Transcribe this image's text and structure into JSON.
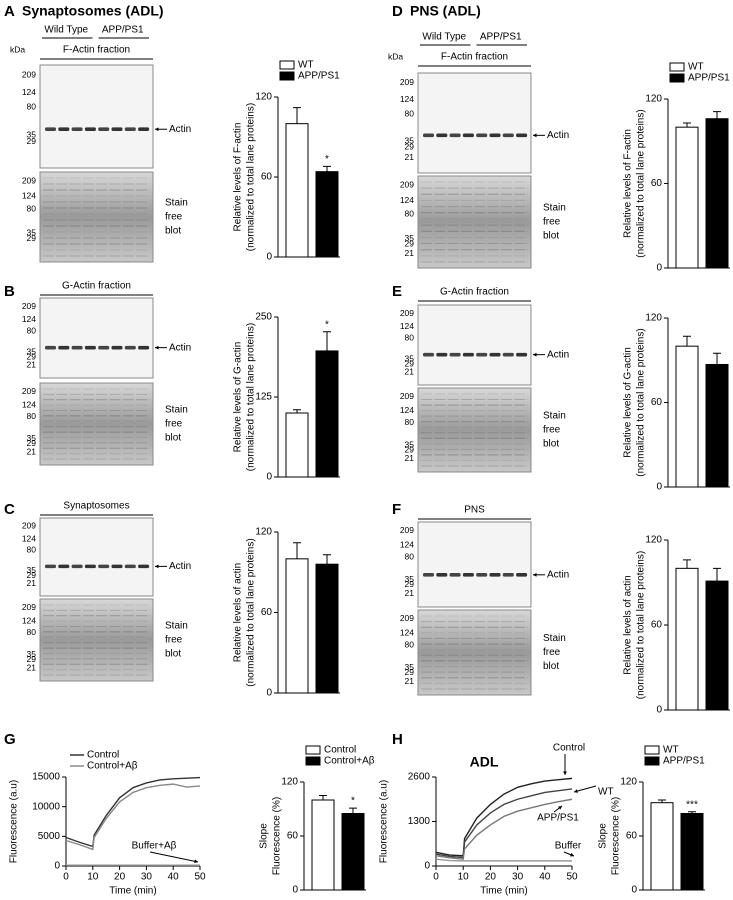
{
  "figure": {
    "panels": [
      {
        "letter": "A",
        "title": "Synaptosomes (ADL)"
      },
      {
        "letter": "B"
      },
      {
        "letter": "C"
      },
      {
        "letter": "D",
        "title": "PNS (ADL)"
      },
      {
        "letter": "E"
      },
      {
        "letter": "F"
      },
      {
        "letter": "G"
      },
      {
        "letter": "H"
      }
    ]
  },
  "blots": [
    {
      "group_labels": [
        "Wild Type",
        "APP/PS1"
      ],
      "unit": "kDa",
      "fraction": "F-Actin fraction",
      "ladder": [
        209,
        124,
        80,
        35,
        29
      ],
      "band_label": "Actin",
      "stain_ladder": [
        209,
        124,
        80,
        35,
        29
      ],
      "stain_label": [
        "Stain",
        "free",
        "blot"
      ]
    },
    {
      "fraction": "G-Actin fraction",
      "ladder": [
        209,
        124,
        80,
        35,
        29,
        21
      ],
      "band_label": "Actin",
      "stain_ladder": [
        209,
        124,
        80,
        35,
        29,
        21
      ],
      "stain_label": [
        "Stain",
        "free",
        "blot"
      ]
    },
    {
      "fraction": "Synaptosomes",
      "ladder": [
        209,
        124,
        80,
        35,
        29,
        21
      ],
      "band_label": "Actin",
      "stain_ladder": [
        209,
        124,
        80,
        35,
        29,
        21
      ],
      "stain_label": [
        "Stain",
        "free",
        "blot"
      ]
    },
    {
      "group_labels": [
        "Wild Type",
        "APP/PS1"
      ],
      "unit": "kDa",
      "fraction": "F-Actin fraction",
      "ladder": [
        209,
        124,
        80,
        35,
        29,
        21
      ],
      "band_label": "Actin",
      "stain_ladder": [
        209,
        124,
        80,
        35,
        29,
        21
      ],
      "stain_label": [
        "Stain",
        "free",
        "blot"
      ]
    },
    {
      "fraction": "G-Actin fraction",
      "ladder": [
        209,
        124,
        80,
        35,
        29,
        21
      ],
      "band_label": "Actin",
      "stain_ladder": [
        209,
        124,
        80,
        35,
        29,
        21
      ],
      "stain_label": [
        "Stain",
        "free",
        "blot"
      ]
    },
    {
      "fraction": "PNS",
      "ladder": [
        209,
        124,
        80,
        35,
        29,
        21
      ],
      "band_label": "Actin",
      "stain_ladder": [
        209,
        124,
        80,
        35,
        29,
        21
      ],
      "stain_label": [
        "Stain",
        "free",
        "blot"
      ]
    }
  ],
  "chart_data": [
    {
      "type": "bar",
      "ylabel": [
        "Relative levels of F-actin",
        "(normalized to total lane proteins)"
      ],
      "categories": [
        "WT",
        "APP/PS1"
      ],
      "values": [
        100,
        64
      ],
      "errors": [
        12,
        4
      ],
      "colors": [
        "#ffffff",
        "#000000"
      ],
      "significance": [
        null,
        "*"
      ],
      "ylim": [
        0,
        120
      ],
      "yticks": [
        0,
        60,
        120
      ],
      "legend": true
    },
    {
      "type": "bar",
      "ylabel": [
        "Relative levels of G-actin",
        "(normalized to total lane proteins)"
      ],
      "categories": [
        "WT",
        "APP/PS1"
      ],
      "values": [
        100,
        197
      ],
      "errors": [
        5,
        30
      ],
      "colors": [
        "#ffffff",
        "#000000"
      ],
      "significance": [
        null,
        "*"
      ],
      "ylim": [
        0,
        250
      ],
      "yticks": [
        0,
        125,
        250
      ],
      "legend": false
    },
    {
      "type": "bar",
      "ylabel": [
        "Relative levels of actin",
        "(normalized to total lane proteins)"
      ],
      "categories": [
        "WT",
        "APP/PS1"
      ],
      "values": [
        100,
        96
      ],
      "errors": [
        12,
        7
      ],
      "colors": [
        "#ffffff",
        "#000000"
      ],
      "significance": [
        null,
        null
      ],
      "ylim": [
        0,
        120
      ],
      "yticks": [
        0,
        60,
        120
      ],
      "legend": false
    },
    {
      "type": "bar",
      "ylabel": [
        "Relative levels of F-actin",
        "(normalized to total lane proteins)"
      ],
      "categories": [
        "WT",
        "APP/PS1"
      ],
      "values": [
        100,
        106
      ],
      "errors": [
        3,
        5
      ],
      "colors": [
        "#ffffff",
        "#000000"
      ],
      "significance": [
        null,
        null
      ],
      "ylim": [
        0,
        120
      ],
      "yticks": [
        0,
        60,
        120
      ],
      "legend": true
    },
    {
      "type": "bar",
      "ylabel": [
        "Relative levels of G-actin",
        "(normalized to total lane proteins)"
      ],
      "categories": [
        "WT",
        "APP/PS1"
      ],
      "values": [
        100,
        87
      ],
      "errors": [
        7,
        8
      ],
      "colors": [
        "#ffffff",
        "#000000"
      ],
      "significance": [
        null,
        null
      ],
      "ylim": [
        0,
        120
      ],
      "yticks": [
        0,
        60,
        120
      ],
      "legend": false
    },
    {
      "type": "bar",
      "ylabel": [
        "Relative levels of actin",
        "(normalized to total lane proteins)"
      ],
      "categories": [
        "WT",
        "APP/PS1"
      ],
      "values": [
        100,
        91
      ],
      "errors": [
        6,
        9
      ],
      "colors": [
        "#ffffff",
        "#000000"
      ],
      "significance": [
        null,
        null
      ],
      "ylim": [
        0,
        120
      ],
      "yticks": [
        0,
        60,
        120
      ],
      "legend": false
    },
    {
      "type": "line",
      "xlabel": "Time (min)",
      "ylabel": "Fluorescence (a.u)",
      "x": [
        0,
        5,
        10,
        10.5,
        15,
        20,
        25,
        30,
        35,
        40,
        45,
        50
      ],
      "series": [
        {
          "name": "Control",
          "color": "#333333",
          "label": "legend",
          "values": [
            4800,
            4000,
            3300,
            5200,
            8500,
            11500,
            13200,
            14000,
            14500,
            14700,
            14800,
            14900
          ]
        },
        {
          "name": "Control+Aβ",
          "color": "#888888",
          "label": "legend",
          "values": [
            4300,
            3600,
            2800,
            4800,
            8000,
            10800,
            12400,
            13200,
            13600,
            13800,
            13300,
            13500
          ]
        },
        {
          "name": "Buffer+Aβ",
          "color": "#aaaaaa",
          "label": "inline",
          "values": [
            150,
            150,
            150,
            150,
            150,
            150,
            150,
            150,
            150,
            150,
            150,
            150
          ]
        }
      ],
      "xlim": [
        0,
        50
      ],
      "xticks": [
        0,
        10,
        20,
        30,
        40,
        50
      ],
      "ylim": [
        0,
        15000
      ],
      "yticks": [
        0,
        5000,
        10000,
        15000
      ]
    },
    {
      "type": "bar",
      "ylabel": [
        "Slope",
        "Fluorescence (%)"
      ],
      "categories": [
        "Control",
        "Control+Aβ"
      ],
      "values": [
        100,
        85
      ],
      "errors": [
        5,
        6
      ],
      "colors": [
        "#ffffff",
        "#000000"
      ],
      "significance": [
        null,
        "*"
      ],
      "ylim": [
        0,
        120
      ],
      "yticks": [
        0,
        60,
        120
      ],
      "legend": true
    },
    {
      "type": "line",
      "title": "ADL",
      "xlabel": "Time (min)",
      "ylabel": "Fluorescence (a.u)",
      "x": [
        0,
        5,
        10,
        10.5,
        15,
        20,
        25,
        30,
        35,
        40,
        45,
        50
      ],
      "series": [
        {
          "name": "Control",
          "color": "#222222",
          "label": "inline",
          "values": [
            400,
            320,
            300,
            800,
            1400,
            1800,
            2100,
            2300,
            2400,
            2480,
            2520,
            2560
          ]
        },
        {
          "name": "WT",
          "color": "#444444",
          "label": "inline",
          "values": [
            350,
            280,
            250,
            700,
            1200,
            1550,
            1800,
            1950,
            2050,
            2150,
            2200,
            2250
          ]
        },
        {
          "name": "APP/PS1",
          "color": "#777777",
          "label": "inline",
          "values": [
            300,
            240,
            200,
            500,
            900,
            1200,
            1450,
            1600,
            1700,
            1800,
            1880,
            1950
          ]
        },
        {
          "name": "Buffer",
          "color": "#999999",
          "label": "inline",
          "values": [
            200,
            160,
            150,
            150,
            150,
            150,
            150,
            150,
            150,
            150,
            150,
            150
          ]
        }
      ],
      "xlim": [
        0,
        50
      ],
      "xticks": [
        0,
        10,
        20,
        30,
        40,
        50
      ],
      "ylim": [
        0,
        2600
      ],
      "yticks": [
        0,
        1300,
        2600
      ]
    },
    {
      "type": "bar",
      "ylabel": [
        "Slope",
        "Fluorescence (%)"
      ],
      "categories": [
        "WT",
        "APP/PS1"
      ],
      "values": [
        97,
        85
      ],
      "errors": [
        3,
        2
      ],
      "colors": [
        "#ffffff",
        "#000000"
      ],
      "significance": [
        null,
        "***"
      ],
      "ylim": [
        0,
        120
      ],
      "yticks": [
        0,
        60,
        120
      ],
      "legend": true
    }
  ]
}
